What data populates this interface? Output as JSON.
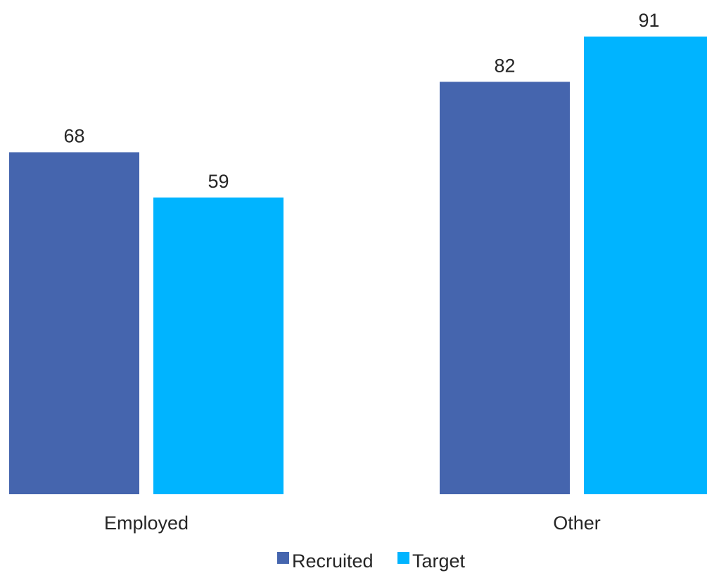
{
  "chart_data": {
    "type": "bar",
    "categories": [
      "Employed",
      "Other"
    ],
    "series": [
      {
        "name": "Recruited",
        "values": [
          68,
          82
        ],
        "color": "#4565AE"
      },
      {
        "name": "Target",
        "values": [
          59,
          91
        ],
        "color": "#00B4FF"
      }
    ],
    "ylim": [
      0,
      100
    ],
    "grid": false,
    "legend_position": "bottom-center",
    "data_labels": true
  }
}
